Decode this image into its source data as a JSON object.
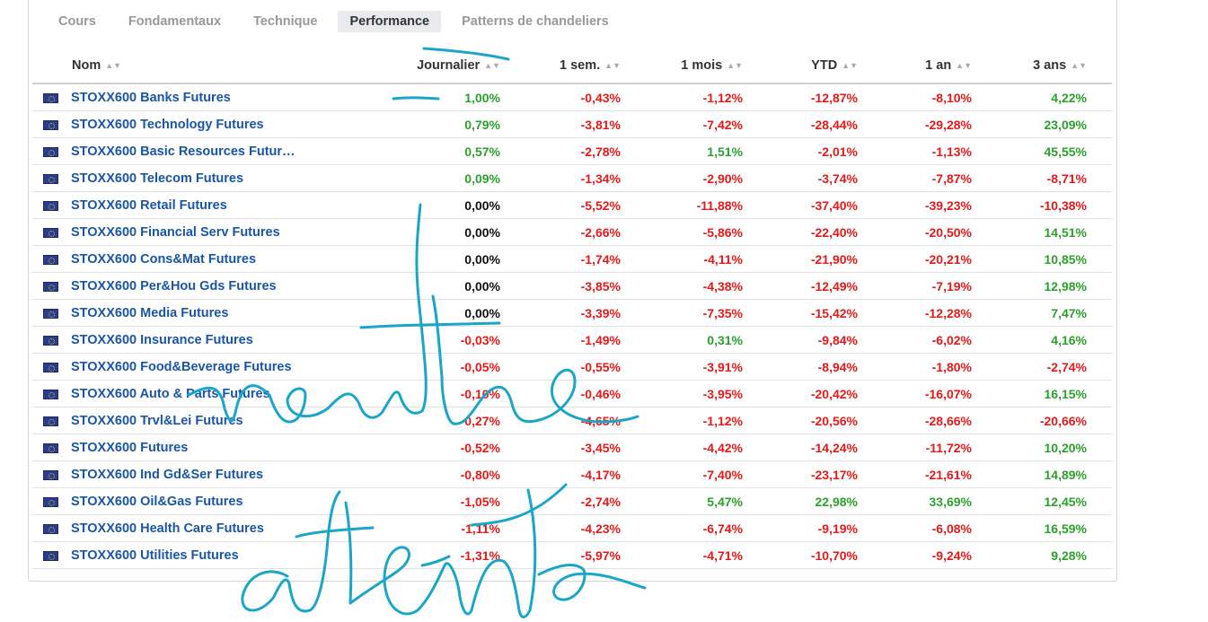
{
  "tabs": [
    {
      "label": "Cours",
      "active": false
    },
    {
      "label": "Fondamentaux",
      "active": false
    },
    {
      "label": "Technique",
      "active": false
    },
    {
      "label": "Performance",
      "active": true
    },
    {
      "label": "Patterns de chandeliers",
      "active": false
    }
  ],
  "columns": [
    "Nom",
    "Journalier",
    "1 sem.",
    "1 mois",
    "YTD",
    "1 an",
    "3 ans"
  ],
  "sort_icon": "sort-arrows-icon",
  "flag_icon": "eu-flag-icon",
  "colors": {
    "positive": "#2ca02c",
    "negative": "#e41a1a",
    "link": "#1a56a6",
    "annotation": "#1aa6c8"
  },
  "rows": [
    {
      "name": "STOXX600 Banks Futures",
      "values": [
        "1,00%",
        "-0,43%",
        "-1,12%",
        "-12,87%",
        "-8,10%",
        "4,22%"
      ]
    },
    {
      "name": "STOXX600 Technology Futures",
      "values": [
        "0,79%",
        "-3,81%",
        "-7,42%",
        "-28,44%",
        "-29,28%",
        "23,09%"
      ]
    },
    {
      "name": "STOXX600 Basic Resources Futur…",
      "values": [
        "0,57%",
        "-2,78%",
        "1,51%",
        "-2,01%",
        "-1,13%",
        "45,55%"
      ]
    },
    {
      "name": "STOXX600 Telecom Futures",
      "values": [
        "0,09%",
        "-1,34%",
        "-2,90%",
        "-3,74%",
        "-7,87%",
        "-8,71%"
      ]
    },
    {
      "name": "STOXX600 Retail Futures",
      "values": [
        "0,00%",
        "-5,52%",
        "-11,88%",
        "-37,40%",
        "-39,23%",
        "-10,38%"
      ]
    },
    {
      "name": "STOXX600 Financial Serv Futures",
      "values": [
        "0,00%",
        "-2,66%",
        "-5,86%",
        "-22,40%",
        "-20,50%",
        "14,51%"
      ]
    },
    {
      "name": "STOXX600 Cons&Mat Futures",
      "values": [
        "0,00%",
        "-1,74%",
        "-4,11%",
        "-21,90%",
        "-20,21%",
        "10,85%"
      ]
    },
    {
      "name": "STOXX600 Per&Hou Gds Futures",
      "values": [
        "0,00%",
        "-3,85%",
        "-4,38%",
        "-12,49%",
        "-7,19%",
        "12,98%"
      ]
    },
    {
      "name": "STOXX600 Media Futures",
      "values": [
        "0,00%",
        "-3,39%",
        "-7,35%",
        "-15,42%",
        "-12,28%",
        "7,47%"
      ]
    },
    {
      "name": "STOXX600 Insurance Futures",
      "values": [
        "-0,03%",
        "-1,49%",
        "0,31%",
        "-9,84%",
        "-6,02%",
        "4,16%"
      ]
    },
    {
      "name": "STOXX600 Food&Beverage Futures",
      "values": [
        "-0,05%",
        "-0,55%",
        "-3,91%",
        "-8,94%",
        "-1,80%",
        "-2,74%"
      ]
    },
    {
      "name": "STOXX600 Auto & Parts Futures",
      "values": [
        "-0,10%",
        "-0,46%",
        "-3,95%",
        "-20,42%",
        "-16,07%",
        "16,15%"
      ]
    },
    {
      "name": "STOXX600 Trvl&Lei Futures",
      "values": [
        "-0,27%",
        "-4,65%",
        "-1,12%",
        "-20,56%",
        "-28,66%",
        "-20,66%"
      ]
    },
    {
      "name": "STOXX600 Futures",
      "values": [
        "-0,52%",
        "-3,45%",
        "-4,42%",
        "-14,24%",
        "-11,72%",
        "10,20%"
      ]
    },
    {
      "name": "STOXX600 Ind Gd&Ser Futures",
      "values": [
        "-0,80%",
        "-4,17%",
        "-7,40%",
        "-23,17%",
        "-21,61%",
        "14,89%"
      ]
    },
    {
      "name": "STOXX600 Oil&Gas Futures",
      "values": [
        "-1,05%",
        "-2,74%",
        "5,47%",
        "22,98%",
        "33,69%",
        "12,45%"
      ]
    },
    {
      "name": "STOXX600 Health Care Futures",
      "values": [
        "-1,11%",
        "-4,23%",
        "-6,74%",
        "-9,19%",
        "-6,08%",
        "16,59%"
      ]
    },
    {
      "name": "STOXX600 Utilities Futures",
      "values": [
        "-1,31%",
        "-5,97%",
        "-4,71%",
        "-10,70%",
        "-9,24%",
        "9,28%"
      ]
    }
  ],
  "annotations": {
    "top_word": "rentre",
    "bottom_word": "attente"
  }
}
